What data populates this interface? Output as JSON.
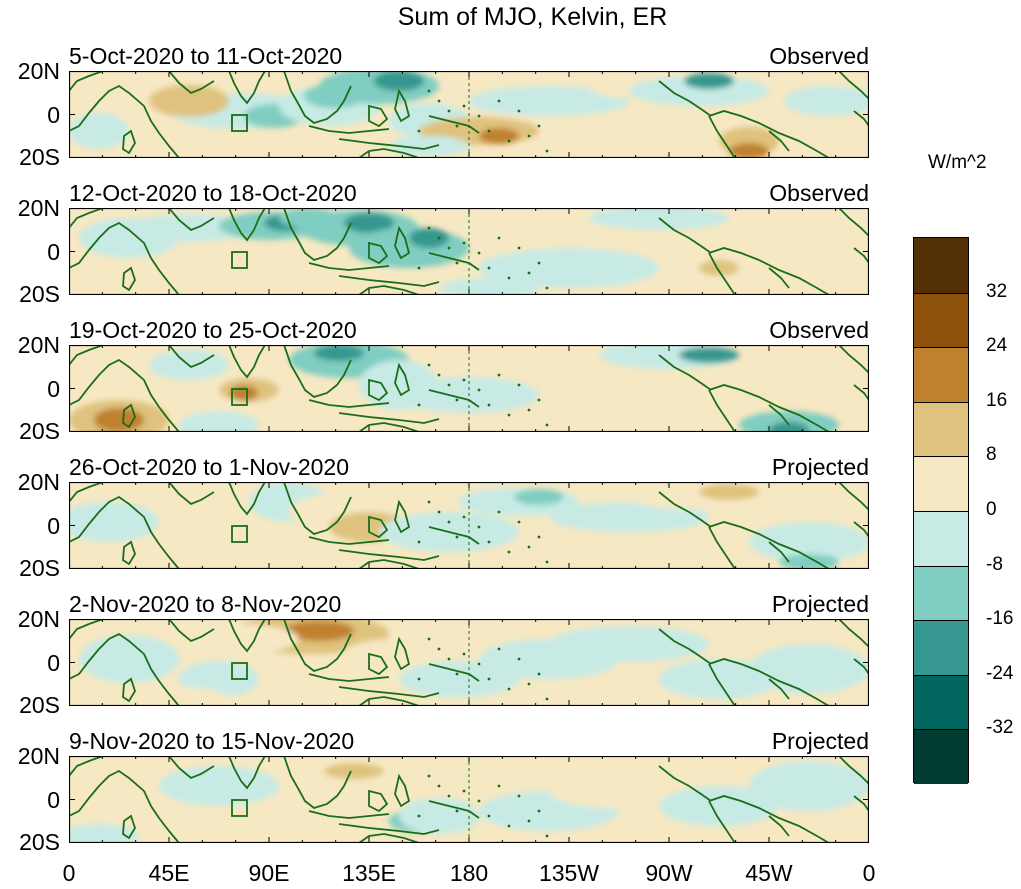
{
  "title": "Sum of MJO, Kelvin, ER",
  "unit_label": "W/m^2",
  "lat_labels": [
    "20N",
    "0",
    "20S"
  ],
  "lon_labels": [
    "0",
    "45E",
    "90E",
    "135E",
    "180",
    "135W",
    "90W",
    "45W",
    "0"
  ],
  "panels": [
    {
      "title": "5-Oct-2020 to 11-Oct-2020",
      "status": "Observed"
    },
    {
      "title": "12-Oct-2020 to 18-Oct-2020",
      "status": "Observed"
    },
    {
      "title": "19-Oct-2020 to 25-Oct-2020",
      "status": "Observed"
    },
    {
      "title": "26-Oct-2020 to 1-Nov-2020",
      "status": "Projected"
    },
    {
      "title": "2-Nov-2020 to 8-Nov-2020",
      "status": "Projected"
    },
    {
      "title": "9-Nov-2020 to 15-Nov-2020",
      "status": "Projected"
    }
  ],
  "colorbar": {
    "ticks": [
      "32",
      "24",
      "16",
      "8",
      "0",
      "-8",
      "-16",
      "-24",
      "-32"
    ],
    "colors": [
      "#543005",
      "#8c510a",
      "#bf812d",
      "#dfc27d",
      "#f6e8c3",
      "#c7eae5",
      "#80cdc1",
      "#35978f",
      "#01665e",
      "#003c30"
    ]
  },
  "colors": {
    "coast": "#1a6e1a",
    "background": "#f6e8c3"
  }
}
